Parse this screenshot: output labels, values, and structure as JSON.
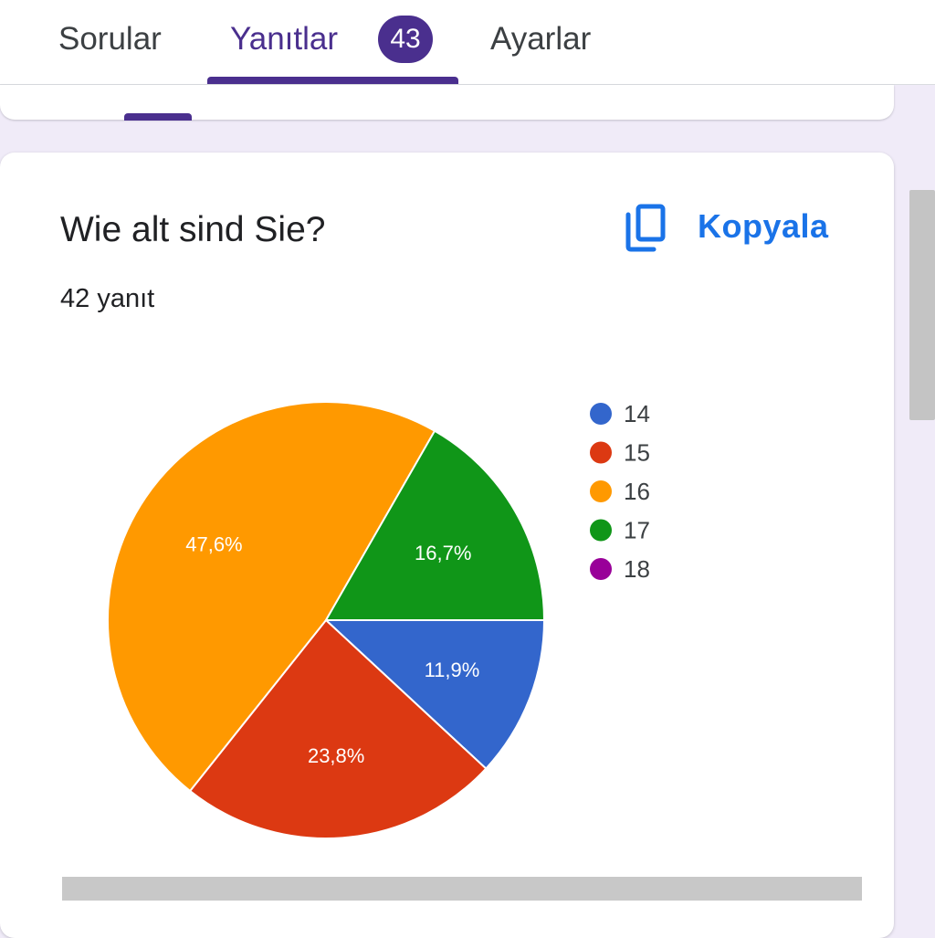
{
  "tabs": {
    "sorular": "Sorular",
    "yanitlar": "Yanıtlar",
    "yanitlar_badge": "43",
    "ayarlar": "Ayarlar"
  },
  "question": {
    "title": "Wie alt sind Sie?",
    "response_count": "42 yanıt",
    "copy_label": "Kopyala",
    "copy_icon": "copy-icon"
  },
  "colors": {
    "accent_purple": "#4a2f8e",
    "link_blue": "#1a73e8",
    "page_background": "#f0ebf8"
  },
  "chart_data": {
    "type": "pie",
    "title": "",
    "legend_position": "right",
    "slices": [
      {
        "label": "14",
        "value": 11.9,
        "display": "11,9%",
        "color": "#3366cc"
      },
      {
        "label": "15",
        "value": 23.8,
        "display": "23,8%",
        "color": "#dc3912"
      },
      {
        "label": "16",
        "value": 47.6,
        "display": "47,6%",
        "color": "#ff9900"
      },
      {
        "label": "17",
        "value": 16.7,
        "display": "16,7%",
        "color": "#109618"
      },
      {
        "label": "18",
        "value": 0,
        "display": "",
        "color": "#990099"
      }
    ]
  }
}
